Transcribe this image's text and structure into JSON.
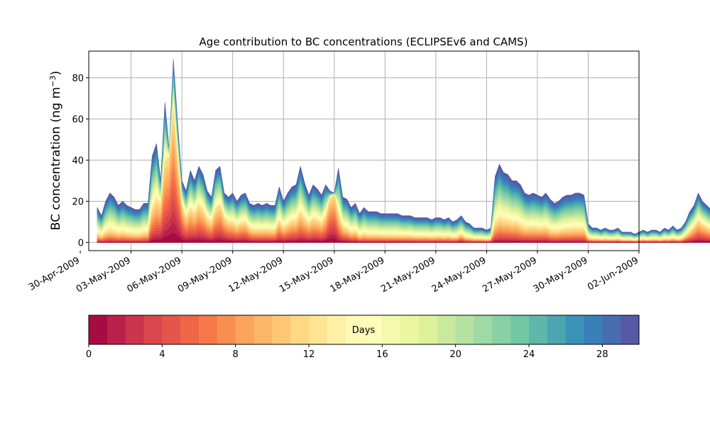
{
  "chart_data": {
    "type": "area",
    "title": "Age contribution to BC concentrations (ECLIPSEv6 and CAMS)",
    "ylabel": "BC concentration (ng m",
    "ylabel_exponent": "−3",
    "ylabel_close": ")",
    "xlabel": "",
    "stacked": true,
    "grid": true,
    "x_start": "2009-05-01",
    "x_step_days": 0.25,
    "xlim": [
      "2009-04-30T12:00",
      "2009-06-02T00:00"
    ],
    "ylim": [
      -4,
      93
    ],
    "x_ticks": [
      "30-Apr-2009",
      "03-May-2009",
      "06-May-2009",
      "09-May-2009",
      "12-May-2009",
      "15-May-2009",
      "18-May-2009",
      "21-May-2009",
      "24-May-2009",
      "27-May-2009",
      "30-May-2009",
      "02-Jun-2009"
    ],
    "x_tick_dates": [
      "2009-04-30",
      "2009-05-03",
      "2009-05-06",
      "2009-05-09",
      "2009-05-12",
      "2009-05-15",
      "2009-05-18",
      "2009-05-21",
      "2009-05-24",
      "2009-05-27",
      "2009-05-30",
      "2009-06-02"
    ],
    "y_ticks": [
      0,
      20,
      40,
      60,
      80
    ],
    "total": [
      17,
      13,
      20,
      24,
      22,
      18,
      20,
      18,
      17,
      16,
      16,
      19,
      19,
      42,
      48,
      30,
      68,
      45,
      89,
      58,
      30,
      25,
      35,
      30,
      37,
      33,
      25,
      22,
      35,
      37,
      24,
      22,
      24,
      20,
      23,
      24,
      19,
      18,
      19,
      18,
      19,
      18,
      18,
      27,
      20,
      24,
      27,
      28,
      37,
      29,
      23,
      28,
      26,
      23,
      28,
      25,
      24,
      36,
      22,
      21,
      17,
      19,
      14,
      17,
      15,
      15,
      15,
      14,
      14,
      14,
      14,
      14,
      13,
      13,
      13,
      12,
      12,
      12,
      12,
      11,
      12,
      12,
      11,
      12,
      10,
      11,
      13,
      10,
      9,
      7,
      7,
      7,
      6,
      7,
      32,
      38,
      34,
      33,
      30,
      30,
      28,
      24,
      23,
      24,
      23,
      22,
      24,
      21,
      19,
      20,
      22,
      23,
      23,
      24,
      24,
      23,
      9,
      7,
      7,
      6,
      7,
      6,
      6,
      7,
      5,
      5,
      5,
      4,
      5,
      6,
      5,
      6,
      6,
      5,
      7,
      6,
      8,
      6,
      7,
      10,
      15,
      18,
      24,
      20,
      18,
      16,
      14,
      12,
      11,
      10,
      10,
      29,
      12,
      11,
      11,
      10,
      11,
      12,
      38,
      24,
      26,
      32,
      35,
      28,
      17,
      15,
      24,
      16,
      12,
      7,
      9
    ],
    "fresh_peaks": [
      0,
      0,
      0,
      0,
      0,
      0,
      0,
      0,
      0,
      0,
      0,
      0,
      0,
      8,
      12,
      14,
      30,
      40,
      56,
      34,
      14,
      8,
      10,
      9,
      12,
      10,
      7,
      6,
      10,
      12,
      8,
      6,
      5,
      4,
      5,
      5,
      3,
      2,
      2,
      2,
      2,
      2,
      2,
      5,
      3,
      4,
      5,
      5,
      7,
      6,
      5,
      6,
      6,
      5,
      8,
      20,
      28,
      6,
      3,
      2,
      1,
      1,
      0,
      0,
      0,
      0,
      0,
      0,
      0,
      0,
      0,
      0,
      0,
      0,
      0,
      0,
      0,
      0,
      0,
      0,
      0,
      0,
      0,
      0,
      0,
      0,
      1,
      0,
      0,
      0,
      0,
      0,
      0,
      0,
      2,
      3,
      3,
      3,
      3,
      3,
      2,
      2,
      2,
      2,
      2,
      2,
      2,
      1,
      1,
      1,
      1,
      1,
      1,
      1,
      1,
      1,
      0,
      0,
      0,
      0,
      0,
      0,
      0,
      0,
      0,
      0,
      0,
      0,
      0,
      0,
      0,
      0,
      0,
      0,
      0,
      0,
      0,
      0,
      0,
      1,
      2,
      4,
      6,
      5,
      4,
      3,
      2,
      2,
      1,
      1,
      1,
      20,
      3,
      2,
      2,
      1,
      2,
      2,
      12,
      16,
      22,
      26,
      18,
      14,
      8,
      6,
      10,
      5,
      3,
      1,
      2
    ],
    "colorbar": {
      "label": "Days",
      "min": 0,
      "max": 30,
      "levels": 30,
      "ticks": [
        0,
        4,
        8,
        12,
        16,
        20,
        24,
        28
      ],
      "colors": [
        "#9e0142",
        "#d53e4f",
        "#f46d43",
        "#fdae61",
        "#fee08b",
        "#ffffbf",
        "#e6f598",
        "#abdda4",
        "#66c2a5",
        "#3288bd",
        "#5e4fa2"
      ]
    }
  }
}
